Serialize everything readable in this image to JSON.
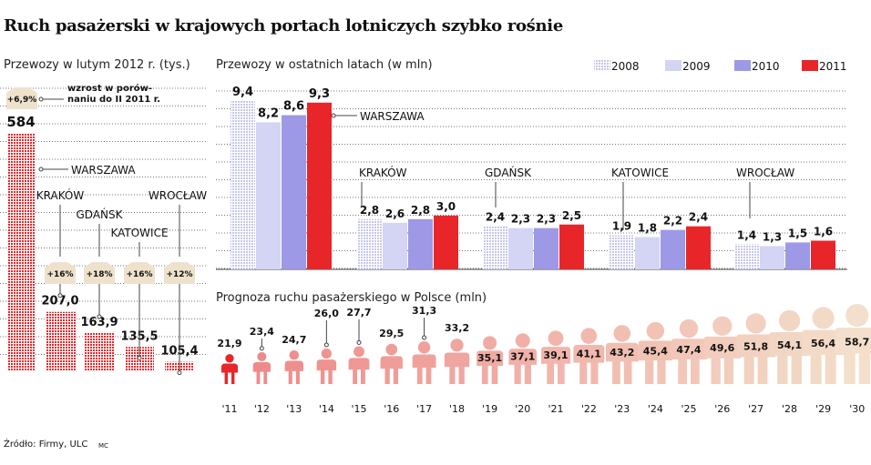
{
  "title": "Ruch pasażerski w krajowych portach lotniczych szybko rośnie",
  "source": "Źródło: Firmy, ULC",
  "credit": "MC",
  "chart_data": [
    {
      "type": "bar",
      "title": "Przewozy w lutym 2012 r. (tys.)",
      "note": "wzrost w porów-naniu do II 2011 r.",
      "categories": [
        "WARSZAWA",
        "KRAKÓW",
        "GDAŃSK",
        "KATOWICE",
        "WROCŁAW"
      ],
      "values": [
        584,
        207.0,
        163.9,
        135.5,
        105.4
      ],
      "value_labels": [
        "584",
        "207,0",
        "163,9",
        "135,5",
        "105,4"
      ],
      "growth": [
        "+6,9%",
        "+16%",
        "+18%",
        "+16%",
        "+12%"
      ],
      "color": "#e8262a",
      "grid": true
    },
    {
      "type": "bar",
      "title": "Przewozy w ostatnich latach (w mln)",
      "categories": [
        "WARSZAWA",
        "KRAKÓW",
        "GDAŃSK",
        "KATOWICE",
        "WROCŁAW"
      ],
      "legend_position": "top-right",
      "series": [
        {
          "name": "2008",
          "color": "#c9c9ee",
          "values": [
            9.4,
            2.8,
            2.4,
            1.9,
            1.4
          ],
          "labels": [
            "9,4",
            "2,8",
            "2,4",
            "1,9",
            "1,4"
          ]
        },
        {
          "name": "2009",
          "color": "#d4d4f5",
          "values": [
            8.2,
            2.6,
            2.3,
            1.8,
            1.3
          ],
          "labels": [
            "8,2",
            "2,6",
            "2,3",
            "1,8",
            "1,3"
          ]
        },
        {
          "name": "2010",
          "color": "#9d99e6",
          "values": [
            8.6,
            2.8,
            2.3,
            2.2,
            1.5
          ],
          "labels": [
            "8,6",
            "2,8",
            "2,3",
            "2,2",
            "1,5"
          ]
        },
        {
          "name": "2011",
          "color": "#e8262a",
          "values": [
            9.3,
            3.0,
            2.5,
            2.4,
            1.6
          ],
          "labels": [
            "9,3",
            "3,0",
            "2,5",
            "2,4",
            "1,6"
          ]
        }
      ],
      "grid": true
    },
    {
      "type": "pictogram",
      "title": "Prognoza ruchu pasażerskiego w Polsce (mln)",
      "categories": [
        "'11",
        "'12",
        "'13",
        "'14",
        "'15",
        "'16",
        "'17",
        "'18",
        "'19",
        "'20",
        "'21",
        "'22",
        "'23",
        "'24",
        "'25",
        "'26",
        "'27",
        "'28",
        "'29",
        "'30"
      ],
      "values": [
        21.9,
        23.4,
        24.7,
        26.0,
        27.7,
        29.5,
        31.3,
        33.2,
        35.1,
        37.1,
        39.1,
        41.1,
        43.2,
        45.4,
        47.4,
        49.6,
        51.8,
        54.1,
        56.4,
        58.7
      ],
      "value_labels": [
        "21,9",
        "23,4",
        "24,7",
        "26,0",
        "27,7",
        "29,5",
        "31,3",
        "33,2",
        "35,1",
        "37,1",
        "39,1",
        "41,1",
        "43,2",
        "45,4",
        "47,4",
        "49,6",
        "51,8",
        "54,1",
        "56,4",
        "58,7"
      ],
      "color_start": "#e8262a",
      "color_end": "#f3dfcb"
    }
  ]
}
